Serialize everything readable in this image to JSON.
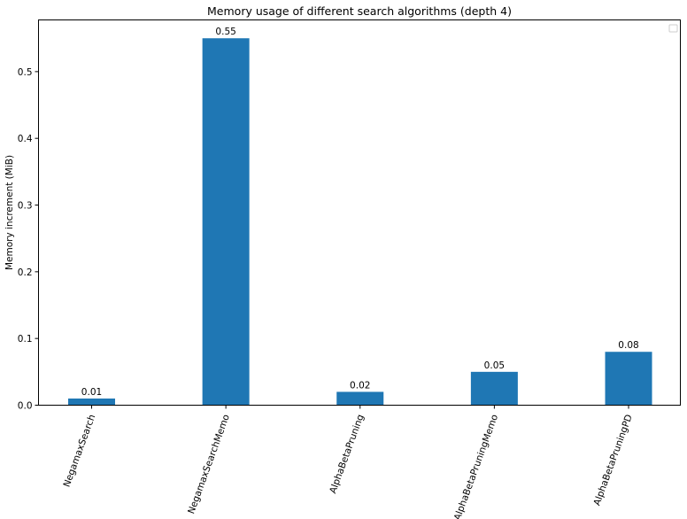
{
  "chart_data": {
    "type": "bar",
    "title": "Memory usage of different search algorithms (depth 4)",
    "xlabel": "",
    "ylabel": "Memory increment (MiB)",
    "categories": [
      "NegamaxSearch",
      "NegamaxSearchMemo",
      "AlphaBetaPruning",
      "AlphaBetaPruningMemo",
      "AlphaBetaPruningPD"
    ],
    "values": [
      0.01,
      0.55,
      0.02,
      0.05,
      0.08
    ],
    "data_labels": [
      "0.01",
      "0.55",
      "0.02",
      "0.05",
      "0.08"
    ],
    "ylim": [
      0,
      0.5775
    ],
    "yticks": [
      0.0,
      0.1,
      0.2,
      0.3,
      0.4,
      0.5
    ],
    "ytick_labels": [
      "0.0",
      "0.1",
      "0.2",
      "0.3",
      "0.4",
      "0.5"
    ],
    "grid": false,
    "legend": "top-right",
    "legend_entries": [],
    "bar_color": "#1f77b4"
  }
}
